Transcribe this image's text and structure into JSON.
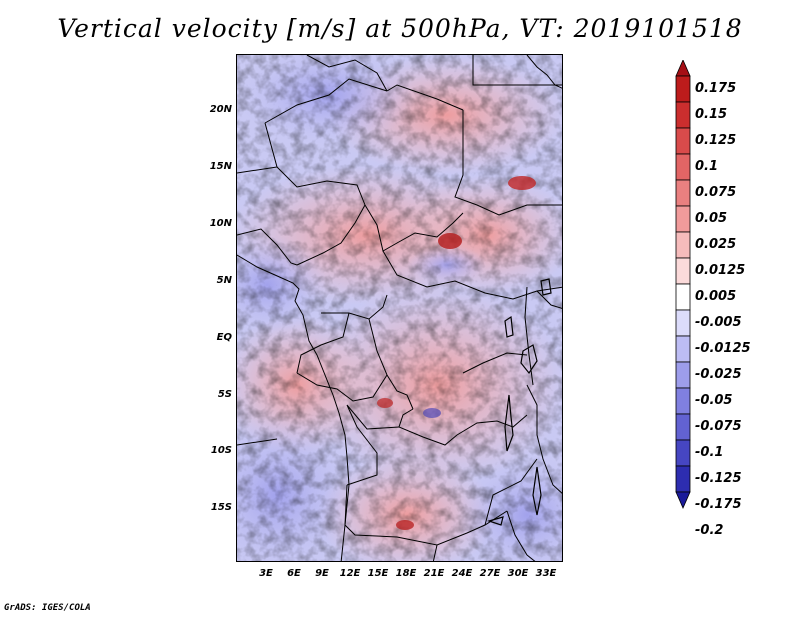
{
  "title": "Vertical velocity [m/s] at 500hPa, VT: 2019101518",
  "credit": "GrADS: IGES/COLA",
  "map": {
    "lat_labels": [
      "20N",
      "15N",
      "10N",
      "5N",
      "EQ",
      "5S",
      "10S",
      "15S"
    ],
    "lon_labels": [
      "3E",
      "6E",
      "9E",
      "12E",
      "15E",
      "18E",
      "21E",
      "24E",
      "27E",
      "30E",
      "33E"
    ]
  },
  "colorbar": {
    "labels": [
      "0.175",
      "0.15",
      "0.125",
      "0.1",
      "0.075",
      "0.05",
      "0.025",
      "0.0125",
      "0.005",
      "-0.005",
      "-0.0125",
      "-0.025",
      "-0.05",
      "-0.075",
      "-0.1",
      "-0.125",
      "-0.175",
      "-0.2"
    ],
    "colors": [
      "#a50f15",
      "#bd1c1c",
      "#cb2e2e",
      "#d94b4b",
      "#e26565",
      "#ea8080",
      "#f19b9b",
      "#f6bcbc",
      "#fbdada",
      "#ffffff",
      "#dcdcfb",
      "#bdbdf4",
      "#9d9deb",
      "#8080e0",
      "#6262d2",
      "#4646c2",
      "#2d2db0",
      "#1a1a9a"
    ]
  }
}
